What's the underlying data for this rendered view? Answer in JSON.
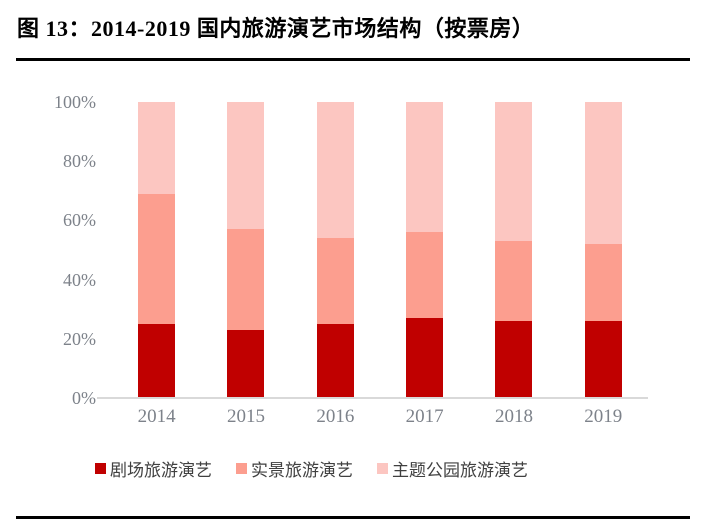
{
  "title": "图 13：2014-2019 国内旅游演艺市场结构（按票房）",
  "colors": {
    "series_theater": "#C00000",
    "series_realscene": "#FC9E8F",
    "series_themepark": "#FCC6C1",
    "axis_label": "#7D828A",
    "legend_text": "#404040",
    "baseline": "#D9D9D9",
    "divider": "#000000"
  },
  "chart_data": {
    "type": "bar",
    "stacked": true,
    "title": "图 13：2014-2019 国内旅游演艺市场结构（按票房）",
    "categories": [
      "2014",
      "2015",
      "2016",
      "2017",
      "2018",
      "2019"
    ],
    "series": [
      {
        "name": "剧场旅游演艺",
        "color": "#C00000",
        "values": [
          25,
          23,
          25,
          27,
          26,
          26
        ]
      },
      {
        "name": "实景旅游演艺",
        "color": "#FC9E8F",
        "values": [
          44,
          34,
          29,
          29,
          27,
          26
        ]
      },
      {
        "name": "主题公园旅游演艺",
        "color": "#FCC6C1",
        "values": [
          31,
          43,
          46,
          44,
          47,
          48
        ]
      }
    ],
    "xlabel": "",
    "ylabel": "",
    "ylim": [
      0,
      100
    ],
    "yticks": [
      {
        "value": 0,
        "label": "0%"
      },
      {
        "value": 20,
        "label": "20%"
      },
      {
        "value": 40,
        "label": "40%"
      },
      {
        "value": 60,
        "label": "60%"
      },
      {
        "value": 80,
        "label": "80%"
      },
      {
        "value": 100,
        "label": "100%"
      }
    ],
    "grid": false,
    "legend_position": "bottom"
  }
}
